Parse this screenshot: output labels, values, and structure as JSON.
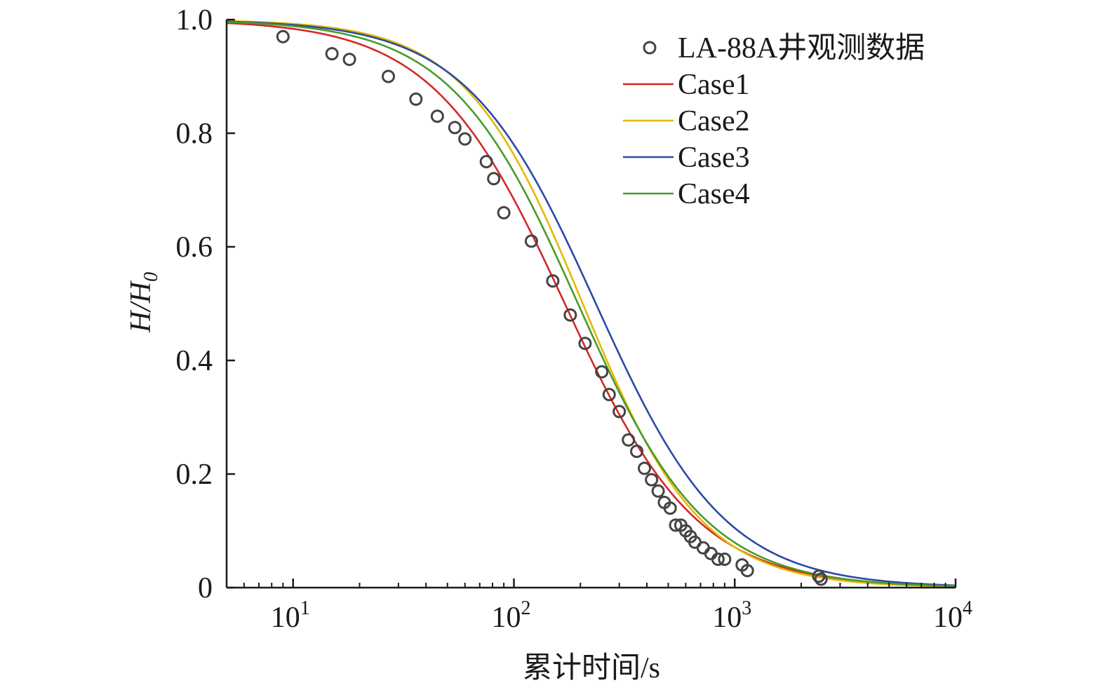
{
  "chart_data": {
    "type": "line",
    "xscale": "log",
    "xlim": [
      5,
      10000
    ],
    "ylim": [
      0,
      1.0
    ],
    "xlabel": "累计时间/s",
    "ylabel": "H/H0",
    "ylabel_parts": {
      "main": "H/H",
      "sub": "0"
    },
    "yticks": [
      {
        "value": 0,
        "label": "0"
      },
      {
        "value": 0.2,
        "label": "0.2"
      },
      {
        "value": 0.4,
        "label": "0.4"
      },
      {
        "value": 0.6,
        "label": "0.6"
      },
      {
        "value": 0.8,
        "label": "0.8"
      },
      {
        "value": 1.0,
        "label": "1.0"
      }
    ],
    "xticks": [
      {
        "value": 10,
        "base": "10",
        "exp": "1"
      },
      {
        "value": 100,
        "base": "10",
        "exp": "2"
      },
      {
        "value": 1000,
        "base": "10",
        "exp": "3"
      },
      {
        "value": 10000,
        "base": "10",
        "exp": "4"
      }
    ],
    "grid": false,
    "legend_position": "top-right",
    "observed": {
      "name": "LA-88A井观测数据",
      "color": "#444444",
      "points": [
        [
          9,
          0.97
        ],
        [
          15,
          0.94
        ],
        [
          18,
          0.93
        ],
        [
          27,
          0.9
        ],
        [
          36,
          0.86
        ],
        [
          45,
          0.83
        ],
        [
          54,
          0.81
        ],
        [
          60,
          0.79
        ],
        [
          75,
          0.75
        ],
        [
          81,
          0.72
        ],
        [
          90,
          0.66
        ],
        [
          120,
          0.61
        ],
        [
          150,
          0.54
        ],
        [
          180,
          0.48
        ],
        [
          210,
          0.43
        ],
        [
          250,
          0.38
        ],
        [
          270,
          0.34
        ],
        [
          300,
          0.31
        ],
        [
          330,
          0.26
        ],
        [
          360,
          0.24
        ],
        [
          390,
          0.21
        ],
        [
          420,
          0.19
        ],
        [
          450,
          0.17
        ],
        [
          480,
          0.15
        ],
        [
          510,
          0.14
        ],
        [
          540,
          0.11
        ],
        [
          570,
          0.11
        ],
        [
          600,
          0.1
        ],
        [
          630,
          0.09
        ],
        [
          660,
          0.08
        ],
        [
          720,
          0.07
        ],
        [
          780,
          0.06
        ],
        [
          840,
          0.05
        ],
        [
          900,
          0.05
        ],
        [
          1080,
          0.04
        ],
        [
          1140,
          0.03
        ],
        [
          2400,
          0.02
        ],
        [
          2460,
          0.015
        ]
      ]
    },
    "series": [
      {
        "name": "Case1",
        "color": "#d62728",
        "t0": 170,
        "slope": 1.45
      },
      {
        "name": "Case2",
        "color": "#e6b800",
        "t0": 205,
        "slope": 1.62
      },
      {
        "name": "Case3",
        "color": "#2a4aa6",
        "t0": 235,
        "slope": 1.48
      },
      {
        "name": "Case4",
        "color": "#4a9a2a",
        "t0": 195,
        "slope": 1.5
      }
    ]
  }
}
